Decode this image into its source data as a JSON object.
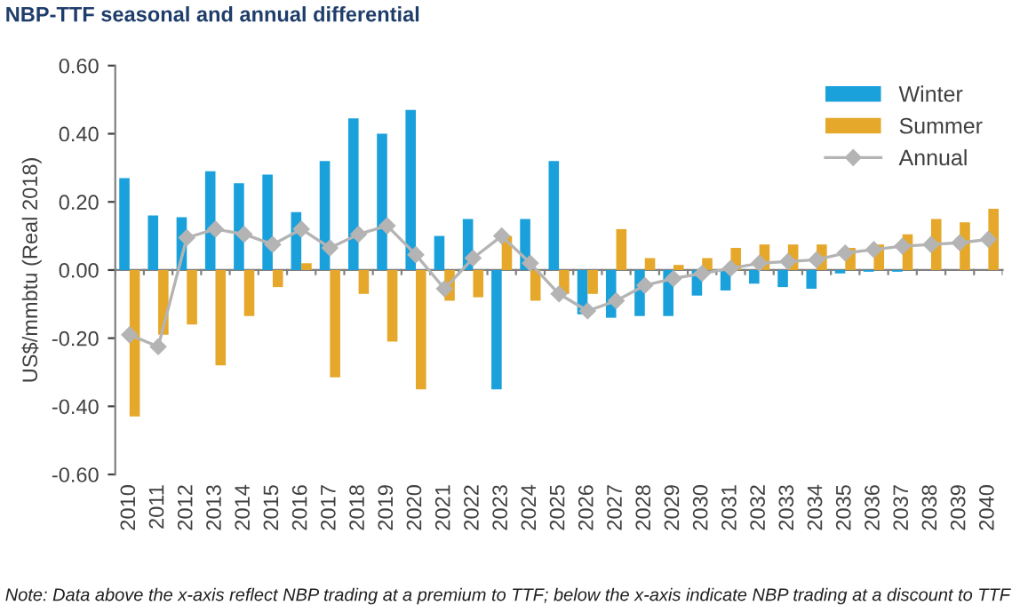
{
  "chart_data": {
    "type": "bar",
    "title": "NBP-TTF seasonal and annual differential",
    "ylabel": "US$/mmbtu (Real 2018)",
    "categories": [
      "2010",
      "2011",
      "2012",
      "2013",
      "2014",
      "2015",
      "2016",
      "2017",
      "2018",
      "2019",
      "2020",
      "2021",
      "2022",
      "2023",
      "2024",
      "2025",
      "2026",
      "2027",
      "2028",
      "2029",
      "2030",
      "2031",
      "2032",
      "2033",
      "2034",
      "2035",
      "2036",
      "2037",
      "2038",
      "2039",
      "2040"
    ],
    "series": [
      {
        "name": "Winter",
        "color": "#1aa1db",
        "values": [
          0.27,
          0.16,
          0.155,
          0.29,
          0.255,
          0.28,
          0.17,
          0.32,
          0.445,
          0.4,
          0.47,
          0.1,
          0.15,
          -0.35,
          0.15,
          0.32,
          -0.13,
          -0.14,
          -0.135,
          -0.135,
          -0.075,
          -0.06,
          -0.04,
          -0.05,
          -0.055,
          -0.01,
          -0.005,
          -0.005,
          0,
          0,
          0
        ]
      },
      {
        "name": "Summer",
        "color": "#e5a82a",
        "values": [
          -0.43,
          -0.19,
          -0.16,
          -0.28,
          -0.135,
          -0.05,
          0.02,
          -0.315,
          -0.07,
          -0.21,
          -0.35,
          -0.09,
          -0.08,
          0.1,
          -0.09,
          -0.07,
          -0.07,
          0.12,
          0.035,
          0.015,
          0.035,
          0.065,
          0.075,
          0.075,
          0.075,
          0.065,
          0.075,
          0.105,
          0.15,
          0.14,
          0.18
        ]
      },
      {
        "name": "Annual",
        "color": "#b4b4b4",
        "type": "line",
        "marker": "diamond",
        "values": [
          -0.19,
          -0.225,
          0.095,
          0.12,
          0.105,
          0.075,
          0.12,
          0.065,
          0.105,
          0.13,
          0.045,
          -0.055,
          0.035,
          0.1,
          0.02,
          -0.07,
          -0.12,
          -0.09,
          -0.045,
          -0.025,
          -0.01,
          0.005,
          0.02,
          0.025,
          0.03,
          0.05,
          0.06,
          0.07,
          0.075,
          0.08,
          0.09
        ]
      }
    ],
    "ylim": [
      -0.6,
      0.6
    ],
    "yticks": [
      {
        "value": -0.6,
        "label": "-0.60"
      },
      {
        "value": -0.4,
        "label": "-0.40"
      },
      {
        "value": -0.2,
        "label": "-0.20"
      },
      {
        "value": 0,
        "label": "0.00"
      },
      {
        "value": 0.2,
        "label": "0.20"
      },
      {
        "value": 0.4,
        "label": "0.40"
      },
      {
        "value": 0.6,
        "label": "0.60"
      }
    ],
    "legend": "top right",
    "annotations": [
      "Note: Data above the x-axis reflect NBP trading at a premium to TTF; below the x-axis indicate NBP trading at a discount to TTF"
    ]
  }
}
